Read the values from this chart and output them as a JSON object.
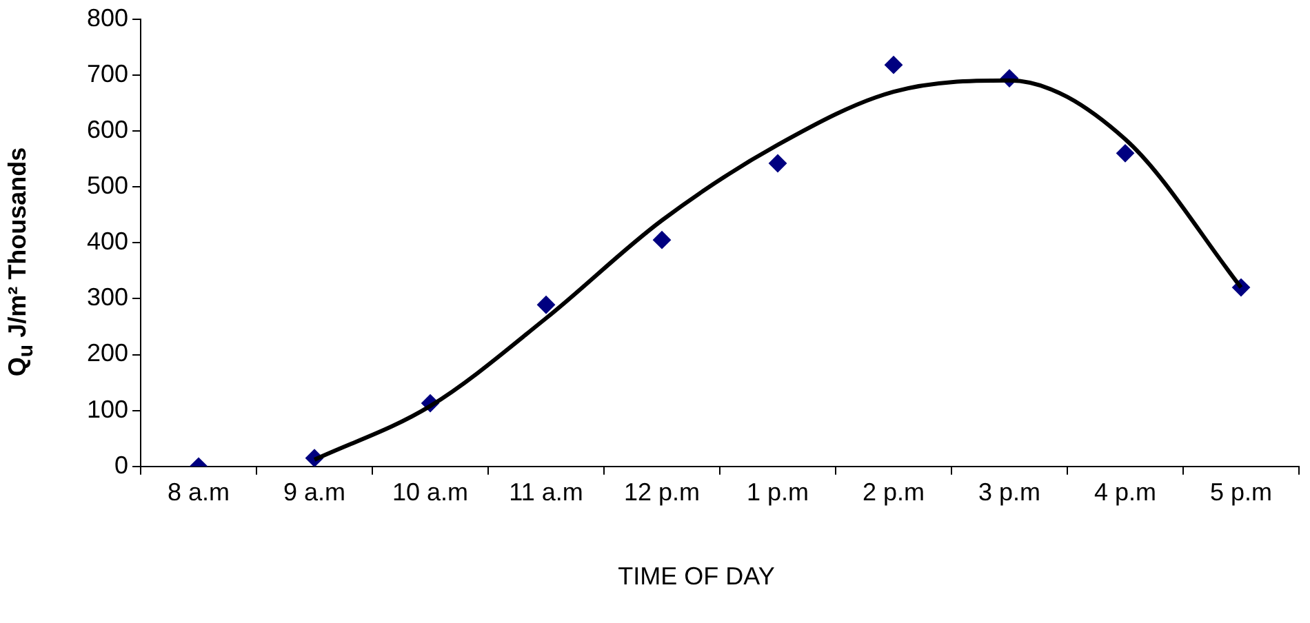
{
  "chart_data": {
    "type": "scatter",
    "xlabel": "TIME OF DAY",
    "ylabel": "Q$_{u}$ J/m² Thousands",
    "categories": [
      "8 a.m",
      "9 a.m",
      "10 a.m",
      "11 a.m",
      "12 p.m",
      "1 p.m",
      "2 p.m",
      "3 p.m",
      "4 p.m",
      "5 p.m"
    ],
    "series": [
      {
        "color": "#000080",
        "marker": "diamond",
        "values": [
          0,
          15,
          113,
          289,
          405,
          542,
          718,
          694,
          560,
          320
        ]
      },
      {
        "type": "line",
        "color": "#000000",
        "marker": "none",
        "line_style": "solid",
        "values": [
          null,
          12,
          108,
          265,
          440,
          575,
          670,
          690,
          585,
          320
        ]
      }
    ],
    "ylim": [
      0,
      800
    ],
    "yticks": [
      0,
      100,
      200,
      300,
      400,
      500,
      600,
      700,
      800
    ],
    "grid": false,
    "legend": false
  }
}
